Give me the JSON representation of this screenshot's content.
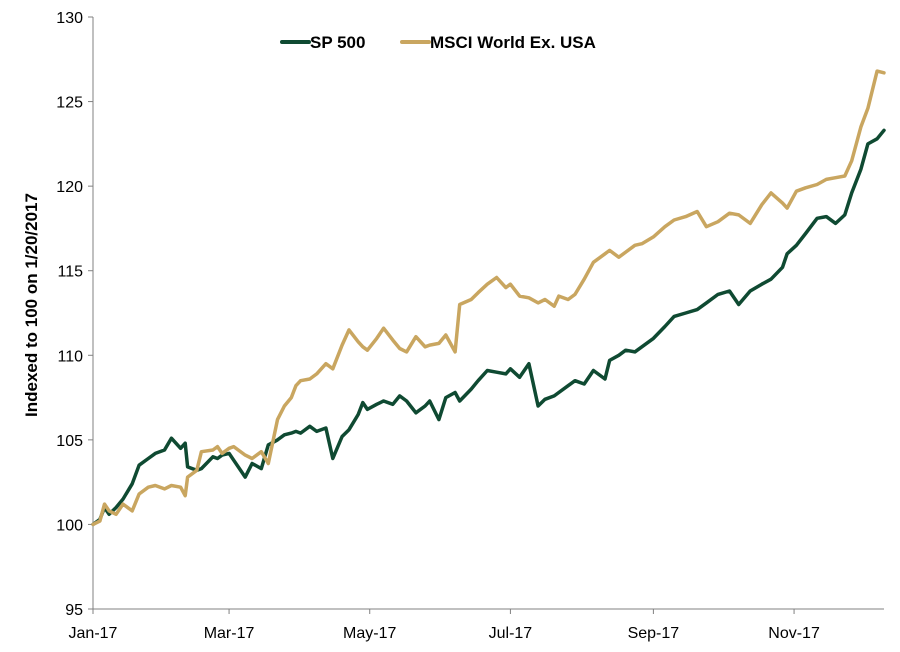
{
  "chart_data": {
    "type": "line",
    "title": "",
    "xlabel": "",
    "ylabel": "Indexed to 100 on 1/20/2017",
    "ylim": [
      95,
      130
    ],
    "yticks": [
      "95",
      "100",
      "105",
      "110",
      "115",
      "120",
      "125",
      "130"
    ],
    "xlim": [
      "2017-01-20",
      "2017-12-29"
    ],
    "xticks": [
      {
        "date": "2017-01-20",
        "label": "Jan-17"
      },
      {
        "date": "2017-03-20",
        "label": "Mar-17"
      },
      {
        "date": "2017-05-20",
        "label": "May-17"
      },
      {
        "date": "2017-07-20",
        "label": "Jul-17"
      },
      {
        "date": "2017-09-20",
        "label": "Sep-17"
      },
      {
        "date": "2017-11-20",
        "label": "Nov-17"
      }
    ],
    "grid": false,
    "legend_position": "top-center",
    "series": [
      {
        "name": "SP 500",
        "color": "#0f4a32",
        "x": [
          "2017-01-20",
          "2017-01-23",
          "2017-01-25",
          "2017-01-27",
          "2017-01-30",
          "2017-02-02",
          "2017-02-06",
          "2017-02-09",
          "2017-02-13",
          "2017-02-16",
          "2017-02-20",
          "2017-02-23",
          "2017-02-27",
          "2017-03-01",
          "2017-03-02",
          "2017-03-06",
          "2017-03-08",
          "2017-03-13",
          "2017-03-15",
          "2017-03-17",
          "2017-03-20",
          "2017-03-22",
          "2017-03-27",
          "2017-03-30",
          "2017-04-03",
          "2017-04-06",
          "2017-04-10",
          "2017-04-13",
          "2017-04-16",
          "2017-04-18",
          "2017-04-20",
          "2017-04-24",
          "2017-04-27",
          "2017-05-01",
          "2017-05-04",
          "2017-05-08",
          "2017-05-11",
          "2017-05-15",
          "2017-05-17",
          "2017-05-19",
          "2017-05-23",
          "2017-05-26",
          "2017-05-30",
          "2017-06-02",
          "2017-06-05",
          "2017-06-09",
          "2017-06-13",
          "2017-06-15",
          "2017-06-19",
          "2017-06-22",
          "2017-06-26",
          "2017-06-28",
          "2017-07-03",
          "2017-07-06",
          "2017-07-10",
          "2017-07-14",
          "2017-07-18",
          "2017-07-20",
          "2017-07-24",
          "2017-07-28",
          "2017-08-01",
          "2017-08-04",
          "2017-08-08",
          "2017-08-10",
          "2017-08-14",
          "2017-08-17",
          "2017-08-21",
          "2017-08-25",
          "2017-08-30",
          "2017-09-01",
          "2017-09-05",
          "2017-09-08",
          "2017-09-12",
          "2017-09-15",
          "2017-09-20",
          "2017-09-25",
          "2017-09-29",
          "2017-10-04",
          "2017-10-09",
          "2017-10-13",
          "2017-10-18",
          "2017-10-23",
          "2017-10-27",
          "2017-11-01",
          "2017-11-06",
          "2017-11-10",
          "2017-11-15",
          "2017-11-17",
          "2017-11-21",
          "2017-11-25",
          "2017-11-30",
          "2017-12-04",
          "2017-12-08",
          "2017-12-12",
          "2017-12-15",
          "2017-12-19",
          "2017-12-22",
          "2017-12-26",
          "2017-12-29"
        ],
        "values": [
          100.0,
          100.3,
          101.0,
          100.6,
          101.0,
          101.5,
          102.4,
          103.5,
          103.9,
          104.2,
          104.4,
          105.1,
          104.5,
          104.8,
          103.4,
          103.2,
          103.3,
          104.0,
          103.9,
          104.1,
          104.2,
          103.8,
          102.8,
          103.6,
          103.3,
          104.7,
          105.0,
          105.3,
          105.4,
          105.5,
          105.4,
          105.8,
          105.5,
          105.7,
          103.9,
          105.2,
          105.6,
          106.5,
          107.2,
          106.8,
          107.1,
          107.3,
          107.1,
          107.6,
          107.3,
          106.6,
          107.0,
          107.3,
          106.2,
          107.5,
          107.8,
          107.3,
          108.0,
          108.5,
          109.1,
          109.0,
          108.9,
          109.2,
          108.7,
          109.5,
          107.0,
          107.4,
          107.6,
          107.8,
          108.2,
          108.5,
          108.3,
          109.1,
          108.6,
          109.7,
          110.0,
          110.3,
          110.2,
          110.5,
          111.0,
          111.7,
          112.3,
          112.5,
          112.7,
          113.1,
          113.6,
          113.8,
          113.0,
          113.8,
          114.2,
          114.5,
          115.2,
          116.0,
          116.5,
          117.2,
          118.1,
          118.2,
          117.8,
          118.3,
          119.6,
          121.0,
          122.5,
          122.8,
          123.3
        ]
      },
      {
        "name": "MSCI World Ex. USA",
        "color": "#c9a660",
        "x": [
          "2017-01-20",
          "2017-01-23",
          "2017-01-25",
          "2017-01-27",
          "2017-01-30",
          "2017-02-02",
          "2017-02-06",
          "2017-02-09",
          "2017-02-13",
          "2017-02-16",
          "2017-02-20",
          "2017-02-23",
          "2017-02-27",
          "2017-03-01",
          "2017-03-02",
          "2017-03-06",
          "2017-03-08",
          "2017-03-13",
          "2017-03-15",
          "2017-03-17",
          "2017-03-20",
          "2017-03-22",
          "2017-03-27",
          "2017-03-30",
          "2017-04-03",
          "2017-04-06",
          "2017-04-10",
          "2017-04-13",
          "2017-04-16",
          "2017-04-18",
          "2017-04-20",
          "2017-04-24",
          "2017-04-27",
          "2017-05-01",
          "2017-05-04",
          "2017-05-08",
          "2017-05-11",
          "2017-05-15",
          "2017-05-17",
          "2017-05-19",
          "2017-05-23",
          "2017-05-26",
          "2017-05-30",
          "2017-06-02",
          "2017-06-05",
          "2017-06-09",
          "2017-06-13",
          "2017-06-15",
          "2017-06-19",
          "2017-06-22",
          "2017-06-26",
          "2017-06-28",
          "2017-07-03",
          "2017-07-06",
          "2017-07-10",
          "2017-07-14",
          "2017-07-18",
          "2017-07-20",
          "2017-07-24",
          "2017-07-28",
          "2017-08-01",
          "2017-08-04",
          "2017-08-08",
          "2017-08-10",
          "2017-08-14",
          "2017-08-17",
          "2017-08-21",
          "2017-08-25",
          "2017-08-30",
          "2017-09-01",
          "2017-09-05",
          "2017-09-08",
          "2017-09-12",
          "2017-09-15",
          "2017-09-20",
          "2017-09-25",
          "2017-09-29",
          "2017-10-04",
          "2017-10-09",
          "2017-10-13",
          "2017-10-18",
          "2017-10-23",
          "2017-10-27",
          "2017-11-01",
          "2017-11-06",
          "2017-11-10",
          "2017-11-15",
          "2017-11-17",
          "2017-11-21",
          "2017-11-25",
          "2017-11-30",
          "2017-12-04",
          "2017-12-08",
          "2017-12-12",
          "2017-12-15",
          "2017-12-19",
          "2017-12-22",
          "2017-12-26",
          "2017-12-29"
        ],
        "values": [
          100.0,
          100.2,
          101.2,
          100.8,
          100.6,
          101.2,
          100.8,
          101.8,
          102.2,
          102.3,
          102.1,
          102.3,
          102.2,
          101.7,
          102.8,
          103.2,
          104.3,
          104.4,
          104.6,
          104.2,
          104.5,
          104.6,
          104.1,
          103.9,
          104.3,
          103.6,
          106.2,
          107.0,
          107.5,
          108.2,
          108.5,
          108.6,
          108.9,
          109.5,
          109.2,
          110.6,
          111.5,
          110.8,
          110.5,
          110.3,
          111.0,
          111.6,
          110.9,
          110.4,
          110.2,
          111.1,
          110.5,
          110.6,
          110.7,
          111.2,
          110.2,
          113.0,
          113.3,
          113.7,
          114.2,
          114.6,
          114.0,
          114.2,
          113.5,
          113.4,
          113.1,
          113.3,
          112.9,
          113.5,
          113.3,
          113.6,
          114.5,
          115.5,
          116.0,
          116.2,
          115.8,
          116.1,
          116.5,
          116.6,
          117.0,
          117.6,
          118.0,
          118.2,
          118.5,
          117.6,
          117.9,
          118.4,
          118.3,
          117.8,
          118.9,
          119.6,
          119.0,
          118.7,
          119.7,
          119.9,
          120.1,
          120.4,
          120.5,
          120.6,
          121.5,
          123.5,
          124.6,
          126.8,
          126.7
        ]
      }
    ]
  }
}
